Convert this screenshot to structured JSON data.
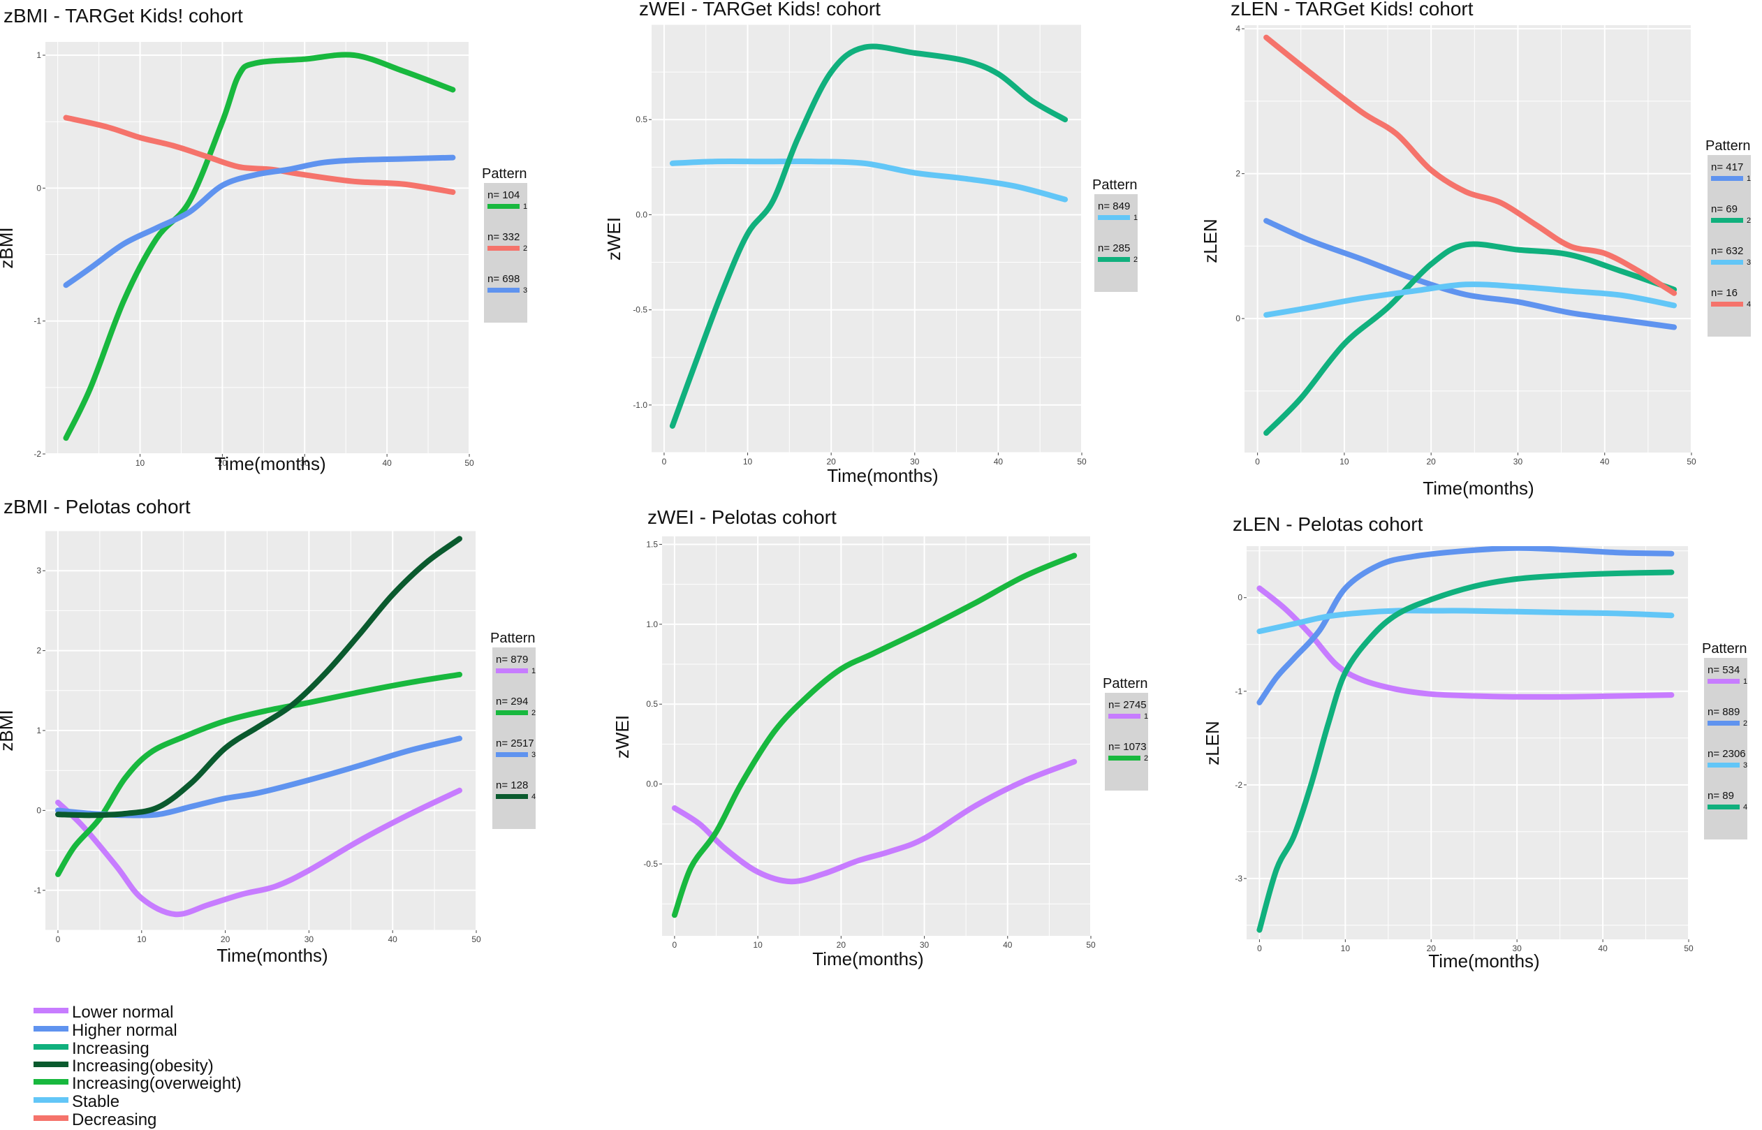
{
  "chart_data": [
    {
      "type": "line",
      "title": "zBMI - TARGet Kids! cohort",
      "xlabel": "Time(months)",
      "ylabel": "zBMI",
      "xlim": [
        -1.5,
        50
      ],
      "ylim": [
        -2,
        1.1
      ],
      "xticks": [
        10,
        20,
        30,
        40,
        50
      ],
      "xtick_labels": [
        "10",
        "20",
        "30",
        "40",
        "50"
      ],
      "yticks": [
        -2,
        -1,
        0,
        1
      ],
      "ytick_labels": [
        "-2",
        "-1",
        "0",
        "1"
      ],
      "grid": true,
      "legend": {
        "title": "Pattern",
        "position": "right"
      },
      "series": [
        {
          "index": "1",
          "n": "n= 104",
          "color": "#18b83e",
          "x": [
            1,
            4,
            8,
            12,
            16,
            20,
            22,
            24,
            30,
            36,
            42,
            48
          ],
          "y": [
            -1.88,
            -1.5,
            -0.85,
            -0.38,
            -0.1,
            0.5,
            0.85,
            0.94,
            0.97,
            1.0,
            0.88,
            0.74
          ]
        },
        {
          "index": "2",
          "n": "n= 332",
          "color": "#f5736b",
          "x": [
            1,
            6,
            10,
            14,
            18,
            22,
            26,
            30,
            36,
            42,
            48
          ],
          "y": [
            0.53,
            0.46,
            0.38,
            0.32,
            0.24,
            0.16,
            0.14,
            0.1,
            0.05,
            0.03,
            -0.03
          ]
        },
        {
          "index": "3",
          "n": "n= 698",
          "color": "#5f93ef",
          "x": [
            1,
            4,
            8,
            12,
            16,
            20,
            24,
            28,
            32,
            36,
            42,
            48
          ],
          "y": [
            -0.73,
            -0.6,
            -0.42,
            -0.3,
            -0.18,
            0.02,
            0.1,
            0.14,
            0.19,
            0.21,
            0.22,
            0.23
          ]
        }
      ]
    },
    {
      "type": "line",
      "title": "zWEI - TARGet Kids! cohort",
      "xlabel": "Time(months)",
      "ylabel": "zWEI",
      "xlim": [
        -1.5,
        50
      ],
      "ylim": [
        -1.25,
        1.0
      ],
      "xticks": [
        0,
        10,
        20,
        30,
        40,
        50
      ],
      "xtick_labels": [
        "0",
        "10",
        "20",
        "30",
        "40",
        "50"
      ],
      "yticks": [
        -1.0,
        -0.5,
        0.0,
        0.5
      ],
      "ytick_labels": [
        "-1.0",
        "-0.5",
        "0.0",
        "0.5"
      ],
      "grid": true,
      "legend": {
        "title": "Pattern",
        "position": "right"
      },
      "series": [
        {
          "index": "1",
          "n": "n= 849",
          "color": "#62c6f7",
          "x": [
            1,
            6,
            12,
            18,
            24,
            30,
            36,
            42,
            48
          ],
          "y": [
            0.27,
            0.28,
            0.28,
            0.28,
            0.27,
            0.22,
            0.19,
            0.15,
            0.08
          ]
        },
        {
          "index": "2",
          "n": "n= 285",
          "color": "#10b07d",
          "x": [
            1,
            4,
            7,
            10,
            13,
            16,
            20,
            24,
            30,
            36,
            40,
            44,
            48
          ],
          "y": [
            -1.11,
            -0.75,
            -0.4,
            -0.1,
            0.07,
            0.4,
            0.75,
            0.88,
            0.85,
            0.81,
            0.74,
            0.6,
            0.5
          ]
        }
      ]
    },
    {
      "type": "line",
      "title": "zLEN - TARGet Kids! cohort",
      "xlabel": "Time(months)",
      "ylabel": "zLEN",
      "xlim": [
        -1.5,
        50
      ],
      "ylim": [
        -1.85,
        4.05
      ],
      "xticks": [
        0,
        10,
        20,
        30,
        40,
        50
      ],
      "xtick_labels": [
        "0",
        "10",
        "20",
        "30",
        "40",
        "50"
      ],
      "yticks": [
        0,
        2,
        4
      ],
      "ytick_labels": [
        "0",
        "2",
        "4"
      ],
      "grid": true,
      "legend": {
        "title": "Pattern",
        "position": "right"
      },
      "series": [
        {
          "index": "1",
          "n": "n= 417",
          "color": "#5f93ef",
          "x": [
            1,
            6,
            12,
            18,
            24,
            30,
            36,
            42,
            48
          ],
          "y": [
            1.35,
            1.08,
            0.82,
            0.55,
            0.33,
            0.23,
            0.08,
            -0.02,
            -0.12
          ]
        },
        {
          "index": "2",
          "n": "n= 69",
          "color": "#10b07d",
          "x": [
            1,
            5,
            10,
            15,
            20,
            24,
            30,
            36,
            42,
            48
          ],
          "y": [
            -1.58,
            -1.1,
            -0.35,
            0.15,
            0.75,
            1.02,
            0.95,
            0.88,
            0.65,
            0.4
          ]
        },
        {
          "index": "3",
          "n": "n= 632",
          "color": "#62c6f7",
          "x": [
            1,
            6,
            12,
            18,
            24,
            30,
            36,
            42,
            48
          ],
          "y": [
            0.05,
            0.15,
            0.28,
            0.38,
            0.47,
            0.44,
            0.38,
            0.32,
            0.18
          ]
        },
        {
          "index": "4",
          "n": "n= 16",
          "color": "#f5736b",
          "x": [
            1,
            6,
            12,
            16,
            20,
            24,
            28,
            32,
            36,
            40,
            44,
            48
          ],
          "y": [
            3.88,
            3.4,
            2.85,
            2.55,
            2.05,
            1.75,
            1.6,
            1.3,
            1.0,
            0.9,
            0.65,
            0.35
          ]
        }
      ]
    },
    {
      "type": "line",
      "title": "zBMI - Pelotas cohort",
      "xlabel": "Time(months)",
      "ylabel": "zBMI",
      "xlim": [
        -1.5,
        50
      ],
      "ylim": [
        -1.5,
        3.5
      ],
      "xticks": [
        0,
        10,
        20,
        30,
        40,
        50
      ],
      "xtick_labels": [
        "0",
        "10",
        "20",
        "30",
        "40",
        "50"
      ],
      "yticks": [
        -1,
        0,
        1,
        2,
        3
      ],
      "ytick_labels": [
        "-1",
        "0",
        "1",
        "2",
        "3"
      ],
      "grid": true,
      "legend": {
        "title": "Pattern",
        "position": "right"
      },
      "series": [
        {
          "index": "1",
          "n": "n= 879",
          "color": "#c77cff",
          "x": [
            0,
            3,
            7,
            10,
            14,
            18,
            22,
            26,
            30,
            36,
            42,
            48
          ],
          "y": [
            0.1,
            -0.2,
            -0.7,
            -1.1,
            -1.3,
            -1.18,
            -1.05,
            -0.95,
            -0.75,
            -0.38,
            -0.05,
            0.25
          ]
        },
        {
          "index": "2",
          "n": "n= 294",
          "color": "#18b83e",
          "x": [
            0,
            2,
            5,
            8,
            11,
            15,
            20,
            25,
            30,
            36,
            42,
            48
          ],
          "y": [
            -0.8,
            -0.45,
            -0.1,
            0.4,
            0.72,
            0.92,
            1.12,
            1.25,
            1.35,
            1.48,
            1.6,
            1.7
          ]
        },
        {
          "index": "3",
          "n": "n= 2517",
          "color": "#5f93ef",
          "x": [
            0,
            4,
            8,
            12,
            16,
            20,
            24,
            30,
            36,
            42,
            48
          ],
          "y": [
            0.0,
            -0.04,
            -0.06,
            -0.05,
            0.05,
            0.15,
            0.22,
            0.38,
            0.56,
            0.75,
            0.9
          ]
        },
        {
          "index": "4",
          "n": "n= 128",
          "color": "#0a5a2e",
          "x": [
            0,
            4,
            8,
            12,
            16,
            20,
            24,
            28,
            32,
            36,
            40,
            44,
            48
          ],
          "y": [
            -0.05,
            -0.06,
            -0.04,
            0.04,
            0.35,
            0.78,
            1.05,
            1.32,
            1.72,
            2.2,
            2.7,
            3.1,
            3.4
          ]
        }
      ]
    },
    {
      "type": "line",
      "title": "zWEI - Pelotas cohort",
      "xlabel": "Time(months)",
      "ylabel": "zWEI",
      "xlim": [
        -1.5,
        50
      ],
      "ylim": [
        -0.95,
        1.55
      ],
      "xticks": [
        0,
        10,
        20,
        30,
        40,
        50
      ],
      "xtick_labels": [
        "0",
        "10",
        "20",
        "30",
        "40",
        "50"
      ],
      "yticks": [
        -0.5,
        0.0,
        0.5,
        1.0,
        1.5
      ],
      "ytick_labels": [
        "-0.5",
        "0.0",
        "0.5",
        "1.0",
        "1.5"
      ],
      "grid": true,
      "legend": {
        "title": "Pattern",
        "position": "right"
      },
      "series": [
        {
          "index": "1",
          "n": "n= 2745",
          "color": "#c77cff",
          "x": [
            0,
            3,
            6,
            10,
            14,
            18,
            22,
            26,
            30,
            36,
            42,
            48
          ],
          "y": [
            -0.15,
            -0.25,
            -0.4,
            -0.55,
            -0.61,
            -0.56,
            -0.48,
            -0.42,
            -0.34,
            -0.14,
            0.02,
            0.14
          ]
        },
        {
          "index": "2",
          "n": "n= 1073",
          "color": "#18b83e",
          "x": [
            0,
            2,
            5,
            8,
            12,
            16,
            20,
            24,
            30,
            36,
            42,
            48
          ],
          "y": [
            -0.82,
            -0.52,
            -0.3,
            0.0,
            0.33,
            0.55,
            0.72,
            0.82,
            0.97,
            1.13,
            1.3,
            1.43
          ]
        }
      ]
    },
    {
      "type": "line",
      "title": "zLEN - Pelotas cohort",
      "xlabel": "Time(months)",
      "ylabel": "zLEN",
      "xlim": [
        -1.5,
        50
      ],
      "ylim": [
        -3.65,
        0.55
      ],
      "xticks": [
        0,
        10,
        20,
        30,
        40,
        50
      ],
      "xtick_labels": [
        "0",
        "10",
        "20",
        "30",
        "40",
        "50"
      ],
      "yticks": [
        -3,
        -2,
        -1,
        0
      ],
      "ytick_labels": [
        "-3",
        "-2",
        "-1",
        "0"
      ],
      "grid": true,
      "legend": {
        "title": "Pattern",
        "position": "right"
      },
      "series": [
        {
          "index": "1",
          "n": "n= 534",
          "color": "#c77cff",
          "x": [
            0,
            3,
            6,
            9,
            12,
            16,
            20,
            25,
            30,
            36,
            42,
            48
          ],
          "y": [
            0.1,
            -0.12,
            -0.4,
            -0.72,
            -0.88,
            -0.98,
            -1.03,
            -1.05,
            -1.06,
            -1.06,
            -1.05,
            -1.04
          ]
        },
        {
          "index": "2",
          "n": "n= 889",
          "color": "#5f93ef",
          "x": [
            0,
            2,
            4,
            7,
            10,
            14,
            18,
            24,
            30,
            36,
            42,
            48
          ],
          "y": [
            -1.12,
            -0.85,
            -0.65,
            -0.35,
            0.1,
            0.35,
            0.44,
            0.5,
            0.53,
            0.51,
            0.48,
            0.47
          ]
        },
        {
          "index": "3",
          "n": "n= 2306",
          "color": "#62c6f7",
          "x": [
            0,
            4,
            8,
            12,
            16,
            20,
            24,
            30,
            36,
            42,
            48
          ],
          "y": [
            -0.36,
            -0.28,
            -0.2,
            -0.16,
            -0.14,
            -0.14,
            -0.14,
            -0.15,
            -0.16,
            -0.17,
            -0.19
          ]
        },
        {
          "index": "4",
          "n": "n= 89",
          "color": "#10b07d",
          "x": [
            0,
            2,
            4,
            6,
            8,
            10,
            13,
            16,
            20,
            25,
            30,
            36,
            42,
            48
          ],
          "y": [
            -3.55,
            -2.9,
            -2.55,
            -2.0,
            -1.35,
            -0.8,
            -0.42,
            -0.18,
            -0.02,
            0.12,
            0.2,
            0.24,
            0.26,
            0.27
          ]
        }
      ]
    }
  ],
  "global_legend": [
    {
      "label": "Lower normal",
      "color": "#c77cff"
    },
    {
      "label": "Higher normal",
      "color": "#5f93ef"
    },
    {
      "label": "Increasing",
      "color": "#10b07d"
    },
    {
      "label": "Increasing(obesity)",
      "color": "#0a5a2e"
    },
    {
      "label": "Increasing(overweight)",
      "color": "#18b83e"
    },
    {
      "label": "Stable",
      "color": "#62c6f7"
    },
    {
      "label": "Decreasing",
      "color": "#f5736b"
    }
  ],
  "colors": {
    "panel_bg": "#ebebeb",
    "grid": "#ffffff",
    "legend_bg": "#d4d4d4"
  }
}
